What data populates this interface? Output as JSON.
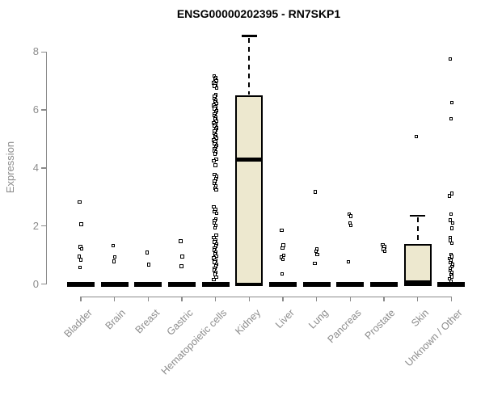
{
  "title": "ENSG00000202395 - RN7SKP1",
  "y_axis": {
    "label": "Expression",
    "ticks": [
      0,
      2,
      4,
      6,
      8
    ]
  },
  "chart_data": {
    "type": "boxplot",
    "title": "ENSG00000202395 - RN7SKP1",
    "xlabel": "",
    "ylabel": "Expression",
    "ylim": [
      0,
      8.6
    ],
    "yticks": [
      0,
      2,
      4,
      6,
      8
    ],
    "grid": false,
    "legend": false,
    "box_fill_color": "#ede8cf",
    "box_line_color": "#000000",
    "axis_color": "#8a8a8a",
    "label_color": "#8c8c8c",
    "categories": [
      "Bladder",
      "Brain",
      "Breast",
      "Gastric",
      "Hematopoietic cells",
      "Kidney",
      "Liver",
      "Lung",
      "Pancreas",
      "Prostate",
      "Skin",
      "Unknown / Other"
    ],
    "series": [
      {
        "name": "Bladder",
        "q1": 0,
        "median": 0,
        "q3": 0,
        "whisker_low": 0,
        "whisker_high": 0,
        "outliers": [
          2.83,
          2.06,
          1.28,
          1.22,
          0.95,
          0.84,
          0.57
        ]
      },
      {
        "name": "Brain",
        "q1": 0,
        "median": 0,
        "q3": 0,
        "whisker_low": 0,
        "whisker_high": 0,
        "outliers": [
          1.33,
          0.93,
          0.78
        ]
      },
      {
        "name": "Breast",
        "q1": 0,
        "median": 0,
        "q3": 0,
        "whisker_low": 0,
        "whisker_high": 0,
        "outliers": [
          1.09,
          0.67
        ]
      },
      {
        "name": "Gastric",
        "q1": 0,
        "median": 0,
        "q3": 0,
        "whisker_low": 0,
        "whisker_high": 0,
        "outliers": [
          1.48,
          0.95,
          0.61
        ]
      },
      {
        "name": "Hematopoietic cells",
        "q1": 0,
        "median": 0,
        "q3": 0,
        "whisker_low": 0,
        "whisker_high": 0,
        "outliers": [
          7.18,
          7.12,
          7.06,
          7.0,
          6.94,
          6.88,
          6.82,
          6.76,
          6.52,
          6.46,
          6.4,
          6.34,
          6.28,
          6.22,
          6.16,
          6.1,
          6.04,
          5.98,
          5.92,
          5.86,
          5.8,
          5.74,
          5.68,
          5.62,
          5.56,
          5.5,
          5.44,
          5.38,
          5.32,
          5.26,
          5.2,
          5.14,
          5.08,
          5.02,
          4.96,
          4.9,
          4.84,
          4.78,
          4.72,
          4.66,
          4.6,
          4.54,
          4.48,
          4.3,
          4.24,
          4.1,
          3.78,
          3.7,
          3.62,
          3.54,
          3.46,
          3.38,
          3.3,
          3.24,
          2.66,
          2.58,
          2.5,
          2.44,
          2.24,
          2.18,
          2.1,
          2.02,
          1.94,
          1.68,
          1.6,
          1.52,
          1.45,
          1.38,
          1.31,
          1.24,
          1.17,
          1.1,
          1.03,
          0.96,
          0.89,
          0.82,
          0.75,
          0.68,
          0.61,
          0.54,
          0.47,
          0.4,
          0.33,
          0.24,
          0.16
        ]
      },
      {
        "name": "Kidney",
        "q1": 0,
        "median": 4.3,
        "q3": 6.5,
        "whisker_low": 0,
        "whisker_high": 8.55,
        "outliers": []
      },
      {
        "name": "Liver",
        "q1": 0,
        "median": 0,
        "q3": 0,
        "whisker_low": 0,
        "whisker_high": 0,
        "outliers": [
          1.86,
          1.34,
          1.24,
          0.99,
          0.92,
          0.85,
          0.34
        ]
      },
      {
        "name": "Lung",
        "q1": 0,
        "median": 0,
        "q3": 0,
        "whisker_low": 0,
        "whisker_high": 0,
        "outliers": [
          3.18,
          1.2,
          1.13,
          1.02,
          0.71
        ]
      },
      {
        "name": "Pancreas",
        "q1": 0,
        "median": 0,
        "q3": 0,
        "whisker_low": 0,
        "whisker_high": 0,
        "outliers": [
          2.41,
          2.34,
          2.1,
          2.02,
          0.77
        ]
      },
      {
        "name": "Prostate",
        "q1": 0,
        "median": 0,
        "q3": 0,
        "whisker_low": 0,
        "whisker_high": 0,
        "outliers": [
          1.35,
          1.28,
          1.2,
          1.13
        ]
      },
      {
        "name": "Skin",
        "q1": 0,
        "median": 0.05,
        "q3": 1.39,
        "whisker_low": 0,
        "whisker_high": 2.36,
        "outliers": [
          5.08
        ]
      },
      {
        "name": "Unknown / Other",
        "q1": 0,
        "median": 0,
        "q3": 0,
        "whisker_low": 0,
        "whisker_high": 0,
        "outliers": [
          7.75,
          6.26,
          5.7,
          3.12,
          3.04,
          2.41,
          2.2,
          2.1,
          1.92,
          1.6,
          1.5,
          1.41,
          1.02,
          0.95,
          0.88,
          0.81,
          0.74,
          0.67,
          0.6,
          0.53,
          0.46,
          0.39,
          0.32,
          0.25,
          0.18,
          0.1
        ]
      }
    ]
  }
}
